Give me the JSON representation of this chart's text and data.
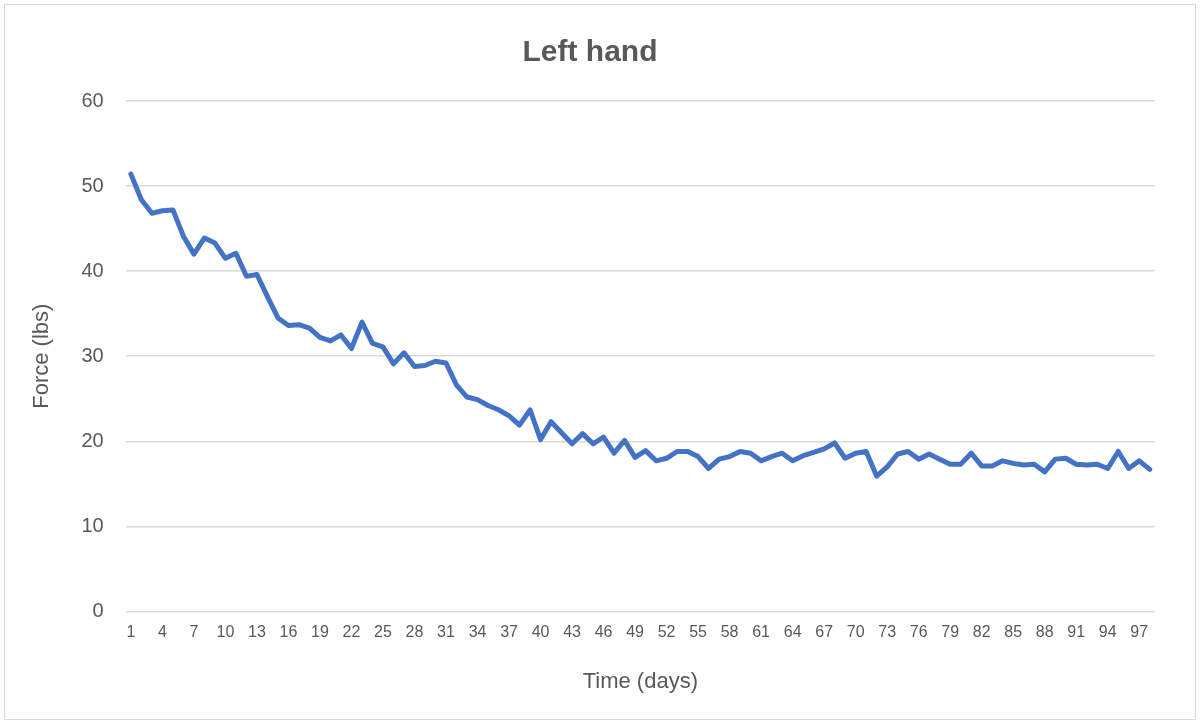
{
  "chart_data": {
    "type": "line",
    "title": "Left hand",
    "xlabel": "Time (days)",
    "ylabel": "Force (lbs)",
    "categories": [
      "1",
      null,
      null,
      "4",
      null,
      null,
      "7",
      null,
      null,
      "10",
      null,
      null,
      "13",
      null,
      null,
      "16",
      null,
      null,
      "19",
      null,
      null,
      "22",
      null,
      null,
      "25",
      null,
      null,
      "28",
      null,
      null,
      "31",
      null,
      null,
      "34",
      null,
      null,
      "37",
      null,
      null,
      "40",
      null,
      null,
      "43",
      null,
      null,
      "46",
      null,
      null,
      "49",
      null,
      null,
      "52",
      null,
      null,
      "55",
      null,
      null,
      "58",
      null,
      null,
      "61",
      null,
      null,
      "64",
      null,
      null,
      "67",
      null,
      null,
      "70",
      null,
      null,
      "73",
      null,
      null,
      "76",
      null,
      null,
      "79",
      null,
      null,
      "82",
      null,
      null,
      "85",
      null,
      null,
      "88",
      null,
      null,
      "91",
      null,
      null,
      "94",
      null,
      null,
      "97",
      null
    ],
    "series": [
      {
        "color": "#4472c4",
        "values": [
          51.4,
          48.4,
          46.8,
          47.1,
          47.2,
          44.1,
          42.0,
          43.9,
          43.3,
          41.5,
          42.1,
          39.4,
          39.6,
          37.0,
          34.5,
          33.6,
          33.7,
          33.3,
          32.2,
          31.8,
          32.5,
          30.9,
          34.0,
          31.5,
          31.1,
          29.1,
          30.4,
          28.8,
          28.9,
          29.4,
          29.2,
          26.6,
          25.2,
          24.9,
          24.2,
          23.7,
          23.0,
          21.9,
          23.7,
          20.2,
          22.3,
          21.0,
          19.7,
          20.9,
          19.7,
          20.5,
          18.6,
          20.1,
          18.1,
          18.9,
          17.7,
          18.0,
          18.8,
          18.8,
          18.2,
          16.8,
          17.9,
          18.2,
          18.8,
          18.6,
          17.7,
          18.2,
          18.6,
          17.7,
          18.3,
          18.7,
          19.1,
          19.8,
          18.0,
          18.6,
          18.8,
          15.9,
          17.0,
          18.5,
          18.8,
          17.9,
          18.5,
          17.9,
          17.3,
          17.3,
          18.6,
          17.1,
          17.1,
          17.7,
          17.4,
          17.2,
          17.3,
          16.4,
          17.9,
          18.0,
          17.3,
          17.2,
          17.3,
          16.8,
          18.8,
          16.8,
          17.7,
          16.7
        ]
      }
    ],
    "ylim": [
      0,
      60
    ],
    "yticks": [
      0,
      10,
      20,
      30,
      40,
      50,
      60
    ],
    "grid": "y",
    "legend": false,
    "marker": "none",
    "line_style": "solid"
  }
}
